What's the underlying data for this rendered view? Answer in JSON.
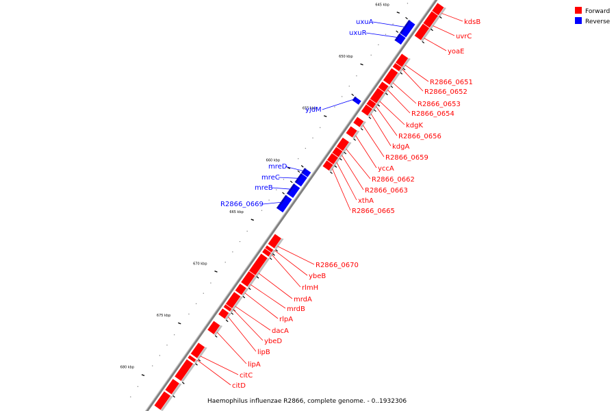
{
  "legend": [
    {
      "label": "Forward",
      "color": "#ff0000"
    },
    {
      "label": "Reverse",
      "color": "#0000ff"
    }
  ],
  "caption": "Haemophilus influenzae R2866, complete genome. - 0..1932306",
  "colors": {
    "forward": "#ff0000",
    "reverse": "#0000ff",
    "backbone": "#808080",
    "leader_forward": "#ff0000",
    "leader_reverse": "#0000ff"
  },
  "ticks": [
    {
      "kbp": 645,
      "label": "645 kbp"
    },
    {
      "kbp": 650,
      "label": "650 kbp"
    },
    {
      "kbp": 655,
      "label": "655 kbp"
    },
    {
      "kbp": 660,
      "label": "660 kbp"
    },
    {
      "kbp": 665,
      "label": "665 kbp"
    },
    {
      "kbp": 670,
      "label": "670 kbp"
    },
    {
      "kbp": 675,
      "label": "675 kbp"
    },
    {
      "kbp": 680,
      "label": "680 kbp"
    }
  ],
  "forward_genes": [
    {
      "name": "kdsB",
      "start_kbp": 642.6,
      "end_kbp": 643.4
    },
    {
      "name": "uvrC",
      "start_kbp": 643.4,
      "end_kbp": 644.6
    },
    {
      "name": "yoaE",
      "start_kbp": 644.6,
      "end_kbp": 645.8
    },
    {
      "name": "R2866_0651",
      "start_kbp": 647.5,
      "end_kbp": 648.4
    },
    {
      "name": "R2866_0652",
      "start_kbp": 648.4,
      "end_kbp": 648.8
    },
    {
      "name": "R2866_0653",
      "start_kbp": 648.9,
      "end_kbp": 650.1
    },
    {
      "name": "R2866_0654",
      "start_kbp": 650.2,
      "end_kbp": 650.8
    },
    {
      "name": "kdgK",
      "start_kbp": 650.8,
      "end_kbp": 651.9
    },
    {
      "name": "R2866_0656",
      "start_kbp": 651.9,
      "end_kbp": 652.4
    },
    {
      "name": "kdgA",
      "start_kbp": 652.4,
      "end_kbp": 653.1
    },
    {
      "name": "R2866_0659",
      "start_kbp": 653.6,
      "end_kbp": 654.2
    },
    {
      "name": "yccA",
      "start_kbp": 654.5,
      "end_kbp": 655.2
    },
    {
      "name": "R2866_0662",
      "start_kbp": 655.6,
      "end_kbp": 656.5
    },
    {
      "name": "R2866_0663",
      "start_kbp": 656.5,
      "end_kbp": 657.1
    },
    {
      "name": "xthA",
      "start_kbp": 657.1,
      "end_kbp": 657.8
    },
    {
      "name": "R2866_0665",
      "start_kbp": 657.8,
      "end_kbp": 658.4
    },
    {
      "name": "R2866_0670",
      "start_kbp": 664.9,
      "end_kbp": 665.9
    },
    {
      "name": "ybeB",
      "start_kbp": 666.0,
      "end_kbp": 666.3
    },
    {
      "name": "rlmH",
      "start_kbp": 666.3,
      "end_kbp": 666.7
    },
    {
      "name": "mrdA",
      "start_kbp": 666.8,
      "end_kbp": 668.5
    },
    {
      "name": "mrdB",
      "start_kbp": 668.5,
      "end_kbp": 669.6
    },
    {
      "name": "rlpA",
      "start_kbp": 669.7,
      "end_kbp": 670.4
    },
    {
      "name": "dacA",
      "start_kbp": 670.5,
      "end_kbp": 671.7
    },
    {
      "name": "ybeD",
      "start_kbp": 671.7,
      "end_kbp": 672.0
    },
    {
      "name": "lipB",
      "start_kbp": 672.1,
      "end_kbp": 672.7
    },
    {
      "name": "lipA",
      "start_kbp": 673.3,
      "end_kbp": 674.2
    },
    {
      "name": "citC",
      "start_kbp": 675.4,
      "end_kbp": 676.5
    },
    {
      "name": "citD",
      "start_kbp": 676.6,
      "end_kbp": 676.9
    },
    {
      "name": "",
      "start_kbp": 677.0,
      "end_kbp": 678.7
    },
    {
      "name": "",
      "start_kbp": 678.9,
      "end_kbp": 680.0
    },
    {
      "name": "",
      "start_kbp": 680.1,
      "end_kbp": 681.5
    }
  ],
  "reverse_genes": [
    {
      "name": "uxuA",
      "start_kbp": 645.0,
      "end_kbp": 646.3
    },
    {
      "name": "uxuR",
      "start_kbp": 646.3,
      "end_kbp": 647.0
    },
    {
      "name": "yjdM",
      "start_kbp": 652.4,
      "end_kbp": 652.8
    },
    {
      "name": "mreD",
      "start_kbp": 659.3,
      "end_kbp": 659.8
    },
    {
      "name": "mreC",
      "start_kbp": 659.8,
      "end_kbp": 660.7
    },
    {
      "name": "mreB",
      "start_kbp": 660.8,
      "end_kbp": 661.8
    },
    {
      "name": "R2866_0669",
      "start_kbp": 661.9,
      "end_kbp": 663.2
    }
  ]
}
